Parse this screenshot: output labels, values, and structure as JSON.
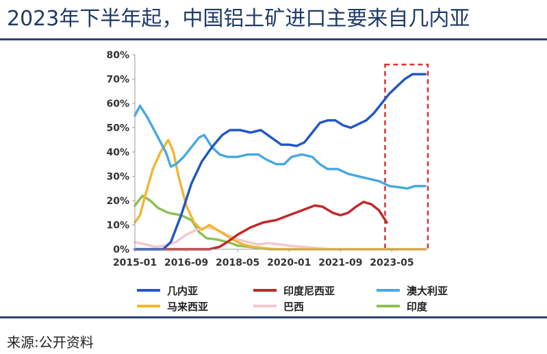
{
  "header": {
    "title": "2023年下半年起，中国铝土矿进口主要来自几内亚"
  },
  "footer": {
    "source": "来源:公开资料"
  },
  "colors": {
    "rule": "#2d4373",
    "title": "#1f3a68",
    "highlight_box": "#e03030"
  },
  "chart_data": {
    "type": "line",
    "title": "",
    "xlabel": "",
    "ylabel": "",
    "x_ticks": [
      "2015-01",
      "2016-09",
      "2018-05",
      "2020-01",
      "2021-09",
      "2023-05"
    ],
    "x_range": [
      "2015-01",
      "2024-07"
    ],
    "ylim": [
      0,
      80
    ],
    "y_ticks": [
      "0%",
      "10%",
      "20%",
      "30%",
      "40%",
      "50%",
      "60%",
      "70%",
      "80%"
    ],
    "grid": false,
    "legend_position": "bottom",
    "highlight_region": {
      "x": [
        "2023-05",
        "2024-07"
      ],
      "y": [
        0,
        76
      ],
      "style": "red-dashed-box"
    },
    "series": [
      {
        "name": "几内亚",
        "color": "#2257c4",
        "points": [
          [
            "2015-01",
            0
          ],
          [
            "2015-06",
            0
          ],
          [
            "2015-12",
            0
          ],
          [
            "2016-03",
            3
          ],
          [
            "2016-07",
            14
          ],
          [
            "2016-11",
            27
          ],
          [
            "2017-03",
            36
          ],
          [
            "2017-07",
            42
          ],
          [
            "2017-11",
            47
          ],
          [
            "2018-02",
            49
          ],
          [
            "2018-06",
            49
          ],
          [
            "2018-10",
            48
          ],
          [
            "2019-02",
            49
          ],
          [
            "2019-06",
            46
          ],
          [
            "2019-10",
            43
          ],
          [
            "2020-01",
            43
          ],
          [
            "2020-04",
            42.5
          ],
          [
            "2020-07",
            44
          ],
          [
            "2020-10",
            48
          ],
          [
            "2021-01",
            52
          ],
          [
            "2021-04",
            53
          ],
          [
            "2021-07",
            53
          ],
          [
            "2021-10",
            51
          ],
          [
            "2022-01",
            50
          ],
          [
            "2022-04",
            51.5
          ],
          [
            "2022-07",
            53
          ],
          [
            "2022-10",
            56
          ],
          [
            "2023-01",
            60
          ],
          [
            "2023-04",
            64
          ],
          [
            "2023-07",
            67
          ],
          [
            "2023-10",
            70
          ],
          [
            "2024-01",
            72
          ],
          [
            "2024-04",
            72
          ],
          [
            "2024-06",
            72
          ]
        ]
      },
      {
        "name": "印度尼西亚",
        "color": "#c0282a",
        "points": [
          [
            "2015-01",
            0
          ],
          [
            "2016-06",
            0
          ],
          [
            "2017-06",
            0
          ],
          [
            "2017-10",
            1
          ],
          [
            "2018-01",
            3
          ],
          [
            "2018-05",
            6
          ],
          [
            "2018-10",
            9
          ],
          [
            "2019-03",
            11
          ],
          [
            "2019-08",
            12
          ],
          [
            "2020-01",
            14
          ],
          [
            "2020-06",
            16
          ],
          [
            "2020-11",
            18
          ],
          [
            "2021-02",
            17.5
          ],
          [
            "2021-06",
            15
          ],
          [
            "2021-09",
            14
          ],
          [
            "2021-12",
            15
          ],
          [
            "2022-03",
            17.5
          ],
          [
            "2022-06",
            19.5
          ],
          [
            "2022-09",
            18.5
          ],
          [
            "2022-12",
            16
          ],
          [
            "2023-03",
            11
          ]
        ]
      },
      {
        "name": "澳大利亚",
        "color": "#4aa8e0",
        "points": [
          [
            "2015-01",
            55
          ],
          [
            "2015-03",
            59
          ],
          [
            "2015-06",
            54
          ],
          [
            "2015-10",
            46
          ],
          [
            "2016-01",
            40
          ],
          [
            "2016-03",
            34
          ],
          [
            "2016-05",
            35
          ],
          [
            "2016-08",
            38
          ],
          [
            "2016-11",
            42
          ],
          [
            "2017-02",
            46
          ],
          [
            "2017-04",
            47
          ],
          [
            "2017-07",
            42
          ],
          [
            "2017-10",
            39
          ],
          [
            "2018-01",
            38
          ],
          [
            "2018-05",
            38
          ],
          [
            "2018-09",
            39
          ],
          [
            "2019-01",
            39
          ],
          [
            "2019-04",
            37
          ],
          [
            "2019-08",
            35
          ],
          [
            "2019-11",
            35
          ],
          [
            "2020-02",
            38
          ],
          [
            "2020-06",
            39
          ],
          [
            "2020-10",
            38
          ],
          [
            "2021-01",
            35
          ],
          [
            "2021-04",
            33
          ],
          [
            "2021-08",
            33
          ],
          [
            "2021-12",
            31
          ],
          [
            "2022-04",
            30
          ],
          [
            "2022-08",
            29
          ],
          [
            "2022-12",
            28
          ],
          [
            "2023-04",
            26
          ],
          [
            "2023-08",
            25.5
          ],
          [
            "2023-11",
            25
          ],
          [
            "2024-02",
            26
          ],
          [
            "2024-06",
            26
          ]
        ]
      },
      {
        "name": "马来西亚",
        "color": "#f2b634",
        "points": [
          [
            "2015-01",
            11
          ],
          [
            "2015-03",
            14
          ],
          [
            "2015-05",
            22
          ],
          [
            "2015-08",
            33
          ],
          [
            "2015-11",
            40
          ],
          [
            "2016-02",
            45
          ],
          [
            "2016-04",
            40
          ],
          [
            "2016-06",
            30
          ],
          [
            "2016-09",
            18
          ],
          [
            "2016-12",
            11
          ],
          [
            "2017-03",
            8
          ],
          [
            "2017-06",
            10
          ],
          [
            "2017-09",
            8
          ],
          [
            "2017-12",
            6
          ],
          [
            "2018-03",
            4
          ],
          [
            "2018-07",
            2
          ],
          [
            "2018-11",
            1
          ],
          [
            "2019-03",
            0.5
          ],
          [
            "2019-08",
            0
          ],
          [
            "2024-06",
            0
          ]
        ]
      },
      {
        "name": "巴西",
        "color": "#f4c8cc",
        "points": [
          [
            "2015-01",
            3
          ],
          [
            "2015-05",
            2
          ],
          [
            "2015-09",
            1
          ],
          [
            "2016-01",
            1.5
          ],
          [
            "2016-05",
            3
          ],
          [
            "2016-09",
            6
          ],
          [
            "2017-01",
            8
          ],
          [
            "2017-05",
            9
          ],
          [
            "2017-09",
            8
          ],
          [
            "2018-01",
            6
          ],
          [
            "2018-05",
            4
          ],
          [
            "2018-09",
            3
          ],
          [
            "2019-01",
            2
          ],
          [
            "2019-05",
            2.5
          ],
          [
            "2019-09",
            2
          ],
          [
            "2020-01",
            1.5
          ],
          [
            "2020-06",
            1
          ],
          [
            "2020-12",
            0.5
          ],
          [
            "2021-06",
            0
          ],
          [
            "2024-06",
            0
          ]
        ]
      },
      {
        "name": "印度",
        "color": "#8cc152",
        "points": [
          [
            "2015-01",
            18
          ],
          [
            "2015-04",
            22
          ],
          [
            "2015-07",
            20
          ],
          [
            "2015-10",
            17
          ],
          [
            "2016-02",
            15
          ],
          [
            "2016-07",
            14
          ],
          [
            "2016-11",
            12
          ],
          [
            "2017-02",
            7
          ],
          [
            "2017-05",
            4.5
          ],
          [
            "2017-09",
            4
          ],
          [
            "2018-01",
            3
          ],
          [
            "2018-05",
            1.5
          ],
          [
            "2018-09",
            1
          ],
          [
            "2019-01",
            0.5
          ],
          [
            "2019-06",
            0
          ],
          [
            "2024-06",
            0
          ]
        ]
      }
    ]
  }
}
